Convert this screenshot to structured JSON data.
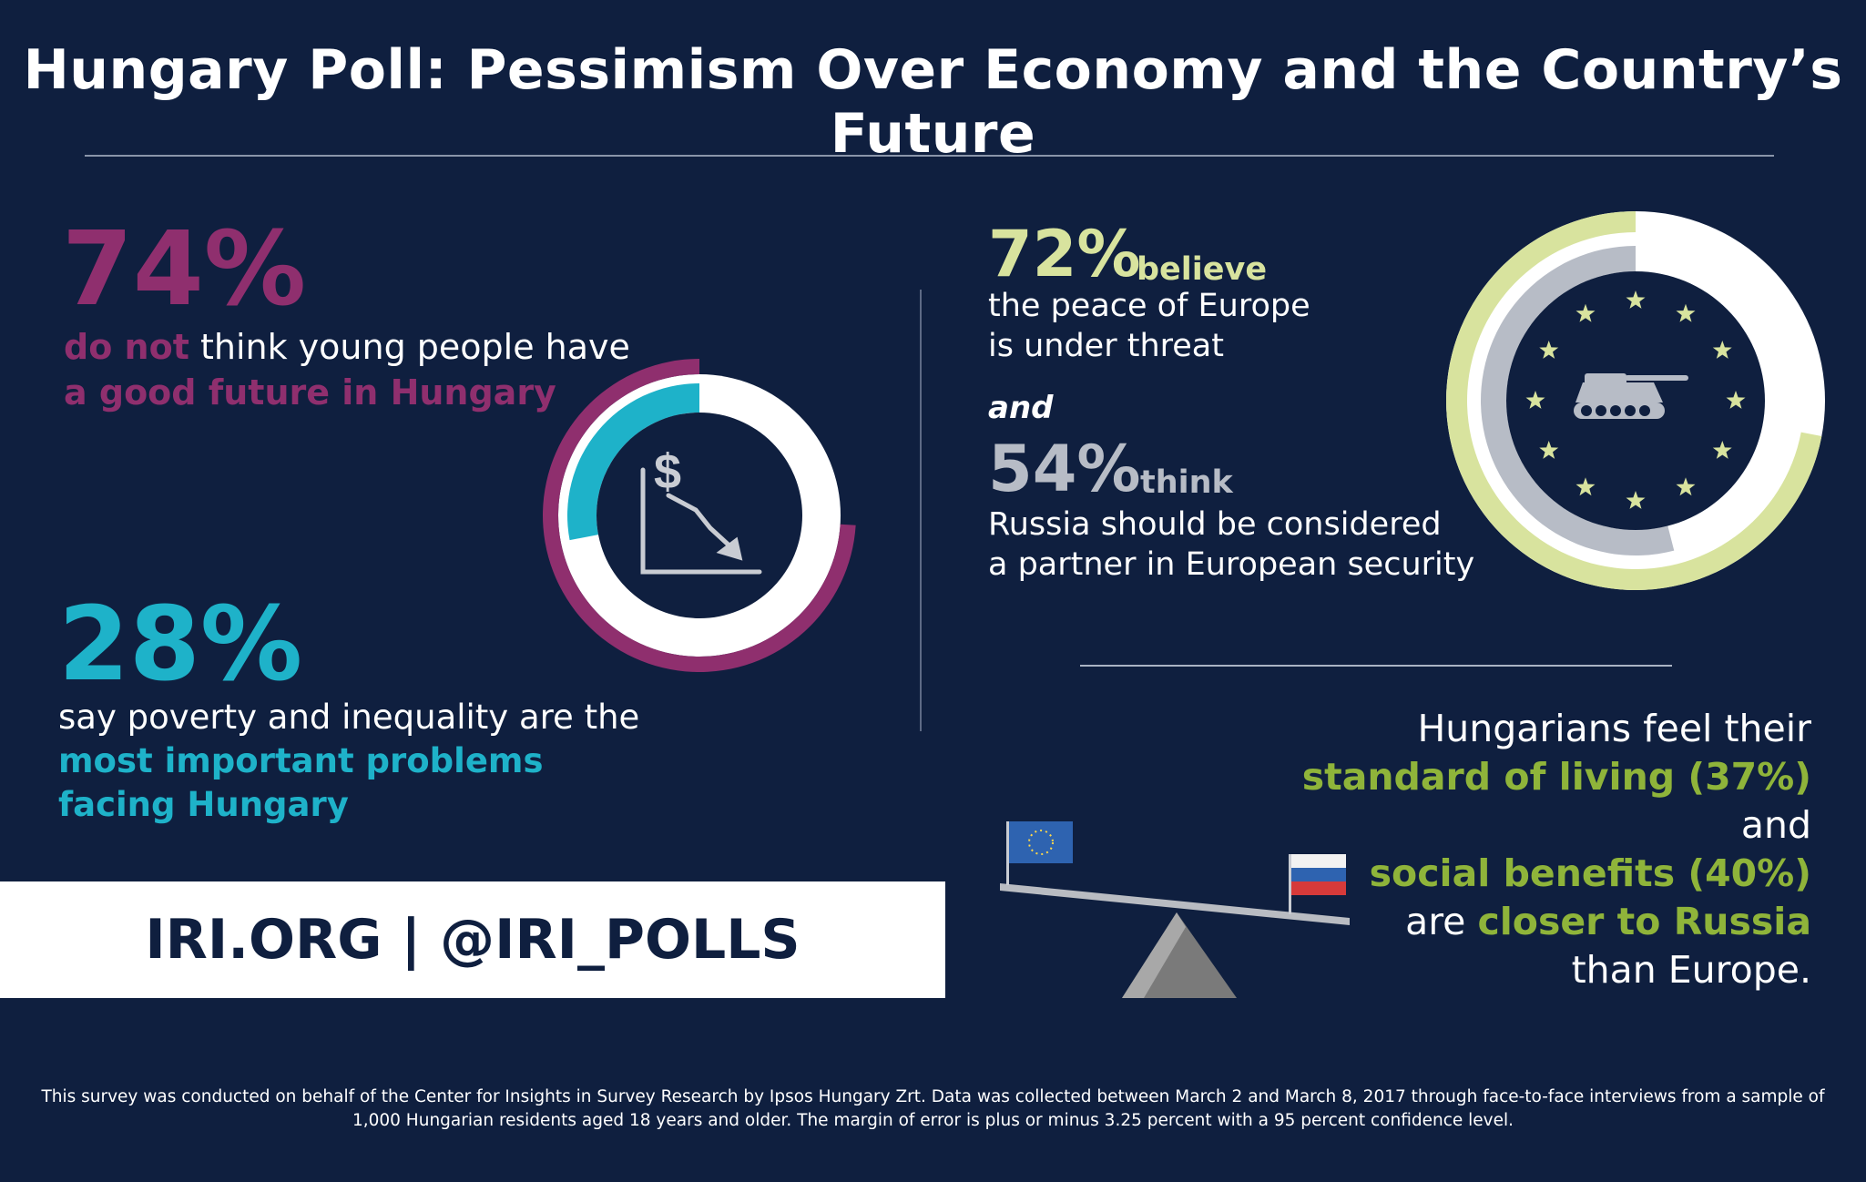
{
  "title": "Hungary Poll: Pessimism Over Economy and the Country’s Future",
  "stat_74": {
    "value": "74%",
    "line1_highlight": "do not",
    "line1_rest": " think young people have",
    "line2": "a good future in Hungary"
  },
  "stat_28": {
    "value": "28%",
    "line1": "say poverty and inequality are the",
    "line2": "most important problems",
    "line3": "facing Hungary"
  },
  "stat_72": {
    "value": "72%",
    "verb": "believe",
    "line1": "the peace of Europe",
    "line2": "is under threat"
  },
  "connector": "and",
  "stat_54": {
    "value": "54%",
    "verb": "think",
    "line1": "Russia should be considered",
    "line2": "a partner in European security"
  },
  "living": {
    "line1": "Hungarians feel their",
    "line2": "standard of living (37%)",
    "line3": "and",
    "line4": "social benefits (40%)",
    "line5_pre": "are ",
    "line5_highlight": "closer to Russia",
    "line6": "than Europe."
  },
  "banner": "IRI.ORG  |  @IRI_POLLS",
  "footnote": {
    "line1": "This survey was conducted on behalf of the Center for Insights in Survey Research by Ipsos Hungary Zrt. Data was collected between March 2 and March 8, 2017 through face-to-face interviews from a sample of",
    "line2": "1,000 Hungarian residents aged 18 years and older. The margin of error is plus or minus 3.25 percent with a 95 percent confidence level."
  },
  "icons": {
    "donut1_center": "declining-dollar-chart-icon",
    "donut2_center": "tank-with-eu-stars-icon",
    "seesaw": "seesaw-eu-vs-russia-icon"
  },
  "colors": {
    "background": "#0f1f3f",
    "magenta": "#8f2f6e",
    "cyan": "#1eb2c9",
    "light_green": "#d8e39e",
    "gray": "#b7bcc6",
    "green": "#8fb43a"
  },
  "donut_values": {
    "outer_74_fraction": 0.74,
    "inner_28_fraction": 0.28,
    "outer_72_fraction": 0.72,
    "inner_54_fraction": 0.54
  }
}
